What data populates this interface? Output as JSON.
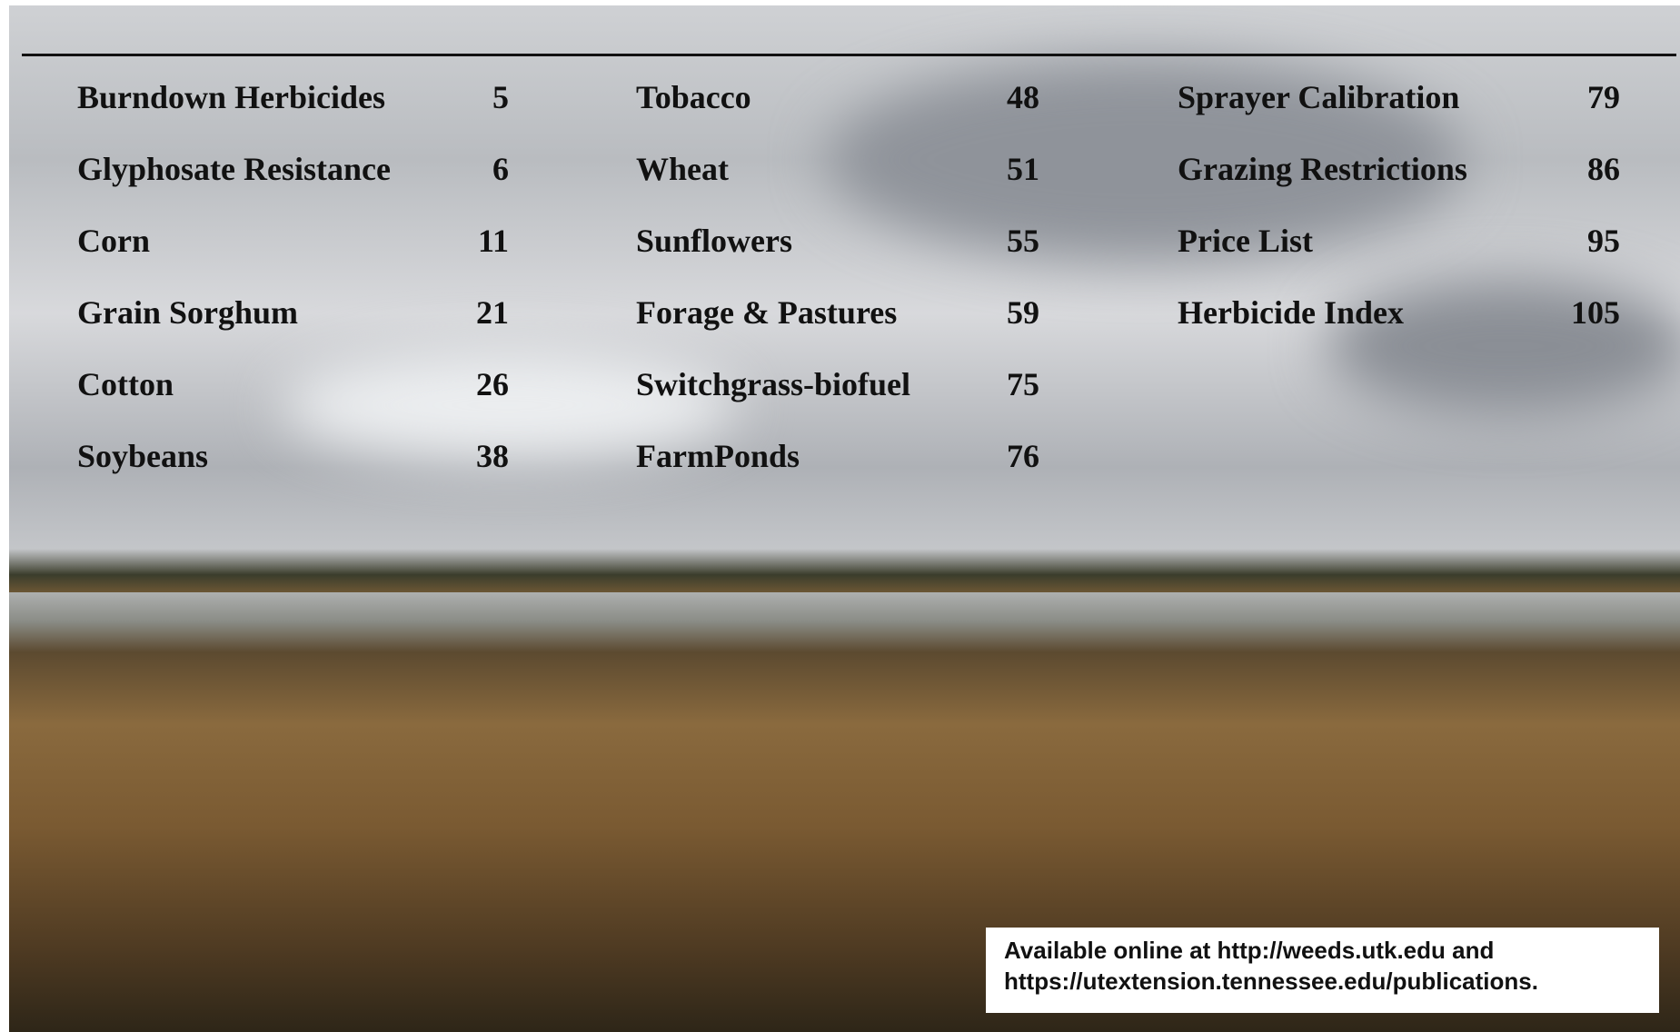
{
  "contents": {
    "columns": [
      [
        {
          "label": "Burndown Herbicides",
          "page": 5
        },
        {
          "label": "Glyphosate Resistance",
          "page": 6
        },
        {
          "label": "Corn",
          "page": 11
        },
        {
          "label": "Grain Sorghum",
          "page": 21
        },
        {
          "label": "Cotton",
          "page": 26
        },
        {
          "label": "Soybeans",
          "page": 38
        }
      ],
      [
        {
          "label": "Tobacco",
          "page": 48
        },
        {
          "label": "Wheat",
          "page": 51
        },
        {
          "label": "Sunflowers",
          "page": 55
        },
        {
          "label": "Forage & Pastures",
          "page": 59
        },
        {
          "label": "Switchgrass-biofuel",
          "page": 75
        },
        {
          "label": "FarmPonds",
          "page": 76
        }
      ],
      [
        {
          "label": "Sprayer Calibration",
          "page": 79
        },
        {
          "label": "Grazing Restrictions",
          "page": 86
        },
        {
          "label": "Price List",
          "page": 95
        },
        {
          "label": "Herbicide Index",
          "page": 105
        }
      ]
    ]
  },
  "footer": {
    "lines": [
      "Available online at http://weeds.utk.edu and",
      "https://utextension.tennessee.edu/publications."
    ]
  }
}
